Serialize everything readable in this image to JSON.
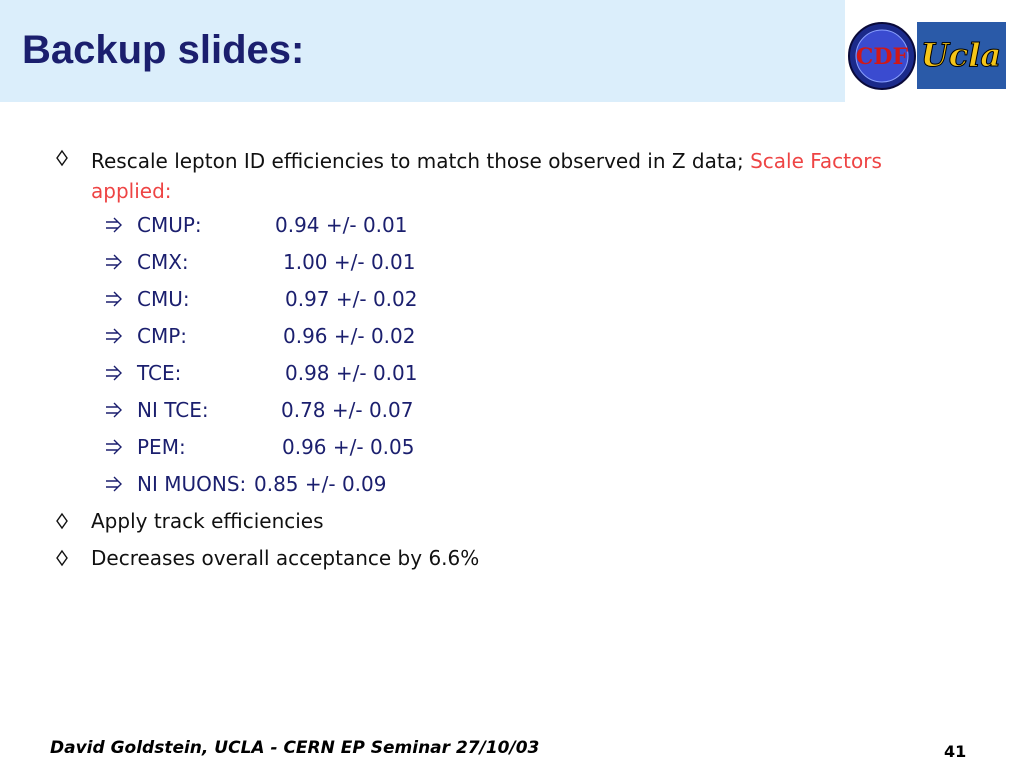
{
  "header": {
    "title": "Backup slides:",
    "logos": [
      "CDF",
      "Ucla"
    ]
  },
  "bullets": [
    {
      "text": "Rescale lepton ID efficiencies to match those observed in Z data; ",
      "highlight": "Scale Factors applied:",
      "items": [
        {
          "label": "CMUP:",
          "value": "0.94 +/- 0.01"
        },
        {
          "label": "CMX:",
          "value": "1.00 +/- 0.01"
        },
        {
          "label": "CMU:",
          "value": "0.97 +/- 0.02"
        },
        {
          "label": "CMP:",
          "value": "0.96 +/- 0.02"
        },
        {
          "label": "TCE:",
          "value": "0.98 +/- 0.01"
        },
        {
          "label": "NI TCE:",
          "value": "0.78 +/- 0.07"
        },
        {
          "label": "PEM:",
          "value": "0.96 +/- 0.05"
        },
        {
          "label": "NI MUONS:",
          "value": "0.85 +/- 0.09"
        }
      ]
    },
    {
      "text": "Apply track efficiencies"
    },
    {
      "text": "Decreases overall acceptance by 6.6%"
    }
  ],
  "footer": {
    "text": "David Goldstein, UCLA - CERN EP Seminar 27/10/03",
    "page": "41"
  }
}
